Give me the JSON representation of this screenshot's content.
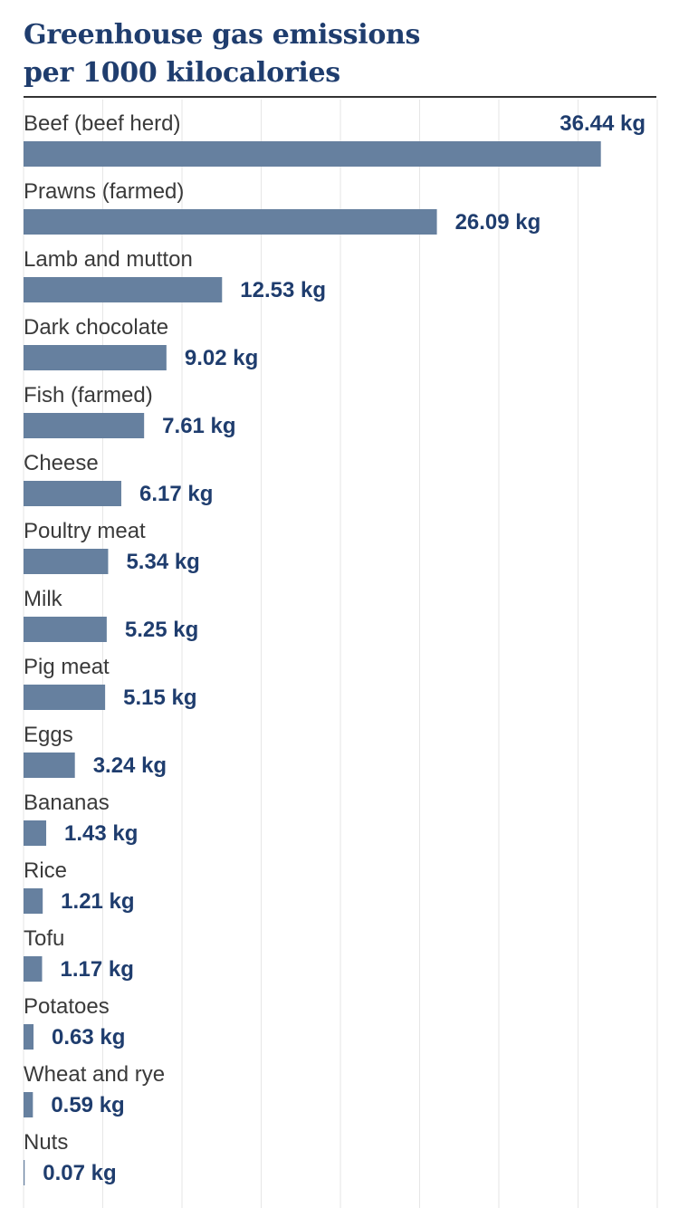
{
  "chart_data": {
    "type": "bar",
    "orientation": "horizontal",
    "title": "Greenhouse gas emissions per 1000 kilocalories",
    "title_lines": [
      "Greenhouse gas emissions",
      "per 1000 kilocalories"
    ],
    "unit": "kg",
    "categories": [
      "Beef (beef herd)",
      "Prawns (farmed)",
      "Lamb and mutton",
      "Dark chocolate",
      "Fish (farmed)",
      "Cheese",
      "Poultry meat",
      "Milk",
      "Pig meat",
      "Eggs",
      "Bananas",
      "Rice",
      "Tofu",
      "Potatoes",
      "Wheat and rye",
      "Nuts"
    ],
    "values": [
      36.44,
      26.09,
      12.53,
      9.02,
      7.61,
      6.17,
      5.34,
      5.25,
      5.15,
      3.24,
      1.43,
      1.21,
      1.17,
      0.63,
      0.59,
      0.07
    ],
    "value_labels": [
      "36.44 kg",
      "26.09 kg",
      "12.53 kg",
      "9.02 kg",
      "7.61 kg",
      "6.17 kg",
      "5.34 kg",
      "5.25 kg",
      "5.15 kg",
      "3.24 kg",
      "1.43 kg",
      "1.21 kg",
      "1.17 kg",
      "0.63 kg",
      "0.59 kg",
      "0.07 kg"
    ],
    "xlim": [
      0,
      40
    ],
    "grid": true,
    "colors": {
      "bar": "#66809f",
      "title": "#1f3d6e",
      "value_label": "#1f3d6e",
      "category_label": "#3a3a3a",
      "grid": "#e6e6e6",
      "rule": "#333333"
    }
  }
}
